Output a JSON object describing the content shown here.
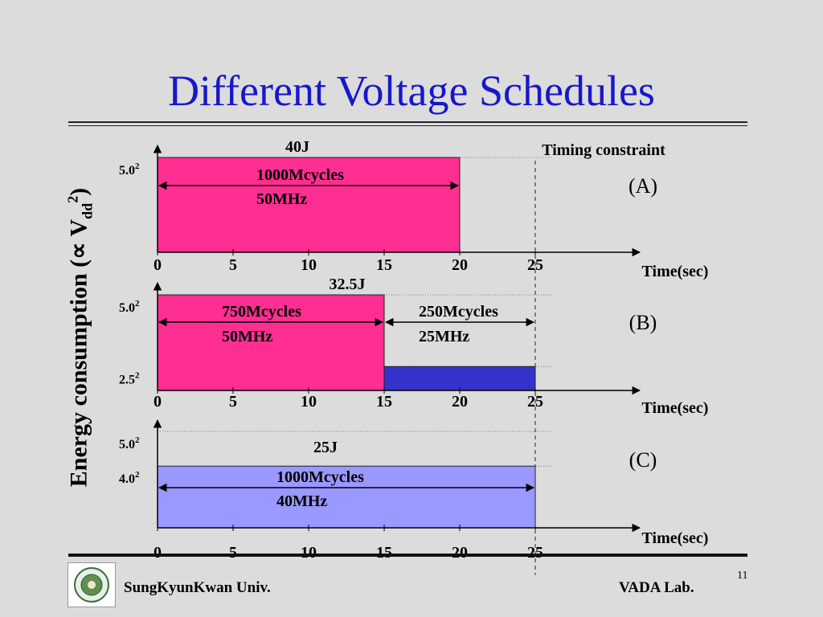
{
  "title": "Different Voltage Schedules",
  "ylabel": "Energy consumption (∝ V",
  "ylabel_sub": "dd",
  "ylabel_sup": "2",
  "ylabel_end": ")",
  "timing_constraint": "Timing constraint",
  "footer": {
    "left": "SungKyunKwan Univ.",
    "right": "VADA Lab.",
    "page": "11"
  },
  "colors": {
    "title": "#1717cc",
    "pink": "#ff2f92",
    "blue": "#3333cc",
    "lavender": "#9999ff"
  },
  "chart_data": [
    {
      "type": "bar",
      "panel_label": "(A)",
      "energy_label": "40J",
      "xlabel": "Time(sec)",
      "x_ticks": [
        "0",
        "5",
        "10",
        "15",
        "20",
        "25"
      ],
      "y_ticks": [
        {
          "label": "5.0",
          "sup": "2",
          "value": 25
        }
      ],
      "segments": [
        {
          "start": 0,
          "end": 20,
          "level": 25,
          "color": "pink",
          "cycles": "1000Mcycles",
          "freq": "50MHz"
        }
      ]
    },
    {
      "type": "bar",
      "panel_label": "(B)",
      "energy_label": "32.5J",
      "xlabel": "Time(sec)",
      "x_ticks": [
        "0",
        "5",
        "10",
        "15",
        "20",
        "25"
      ],
      "y_ticks": [
        {
          "label": "5.0",
          "sup": "2",
          "value": 25
        },
        {
          "label": "2.5",
          "sup": "2",
          "value": 6.25
        }
      ],
      "segments": [
        {
          "start": 0,
          "end": 15,
          "level": 25,
          "color": "pink",
          "cycles": "750Mcycles",
          "freq": "50MHz"
        },
        {
          "start": 15,
          "end": 25,
          "level": 6.25,
          "color": "blue",
          "cycles": "250Mcycles",
          "freq": "25MHz"
        }
      ]
    },
    {
      "type": "bar",
      "panel_label": "(C)",
      "energy_label": "25J",
      "xlabel": "Time(sec)",
      "x_ticks": [
        "0",
        "5",
        "10",
        "15",
        "20",
        "25"
      ],
      "y_ticks": [
        {
          "label": "5.0",
          "sup": "2",
          "value": 25
        },
        {
          "label": "4.0",
          "sup": "2",
          "value": 16
        }
      ],
      "segments": [
        {
          "start": 0,
          "end": 25,
          "level": 16,
          "color": "lavender",
          "cycles": "1000Mcycles",
          "freq": "40MHz"
        }
      ]
    }
  ]
}
